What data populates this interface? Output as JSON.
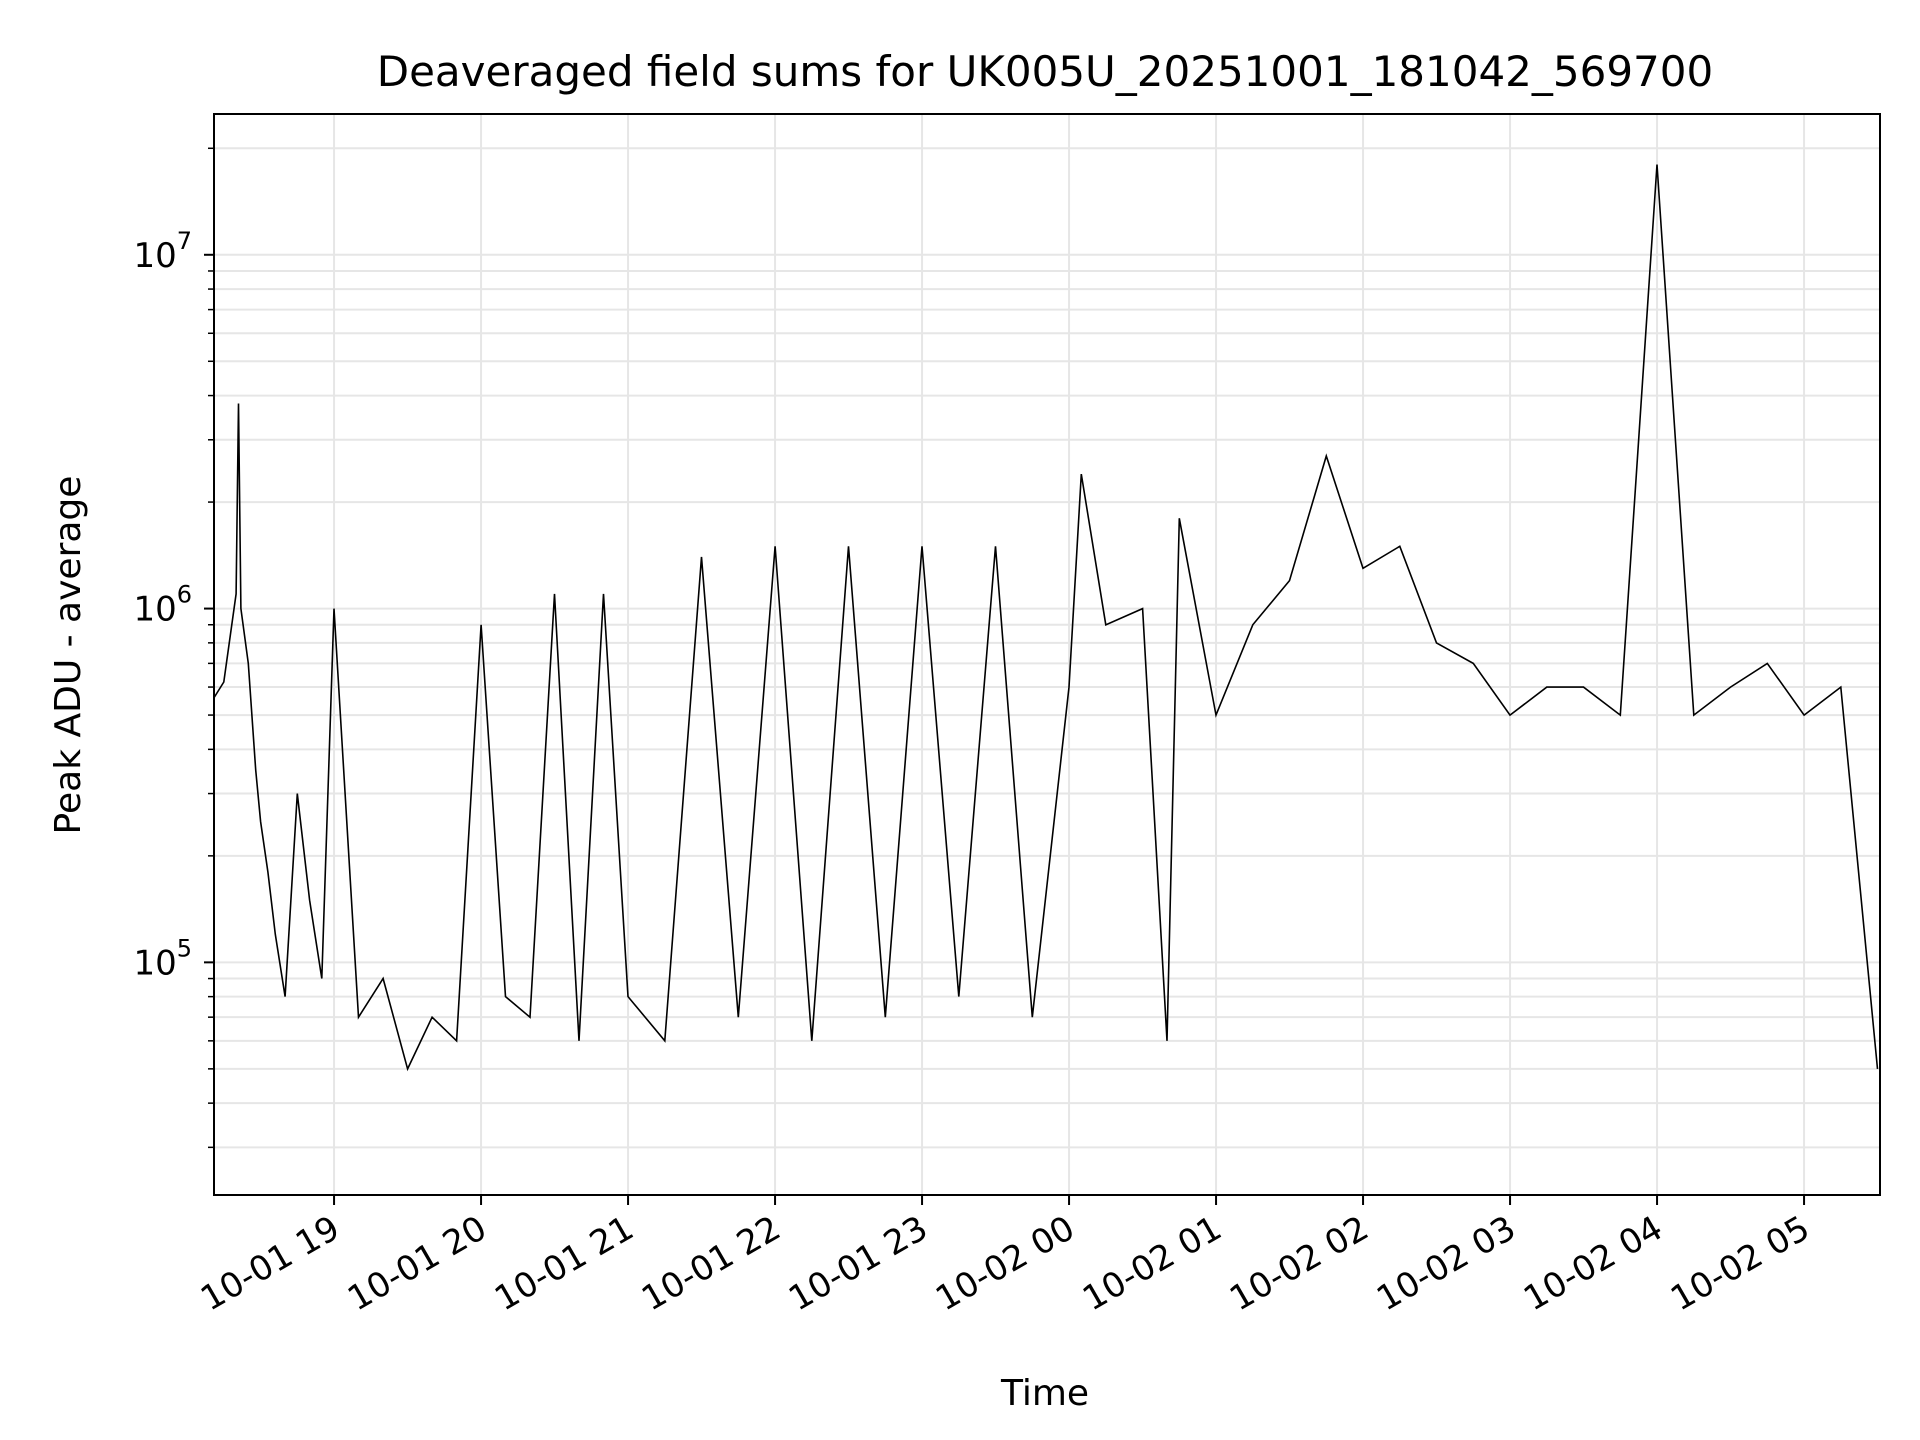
{
  "chart_data": {
    "type": "line",
    "title": "Deaveraged field sums for UK005U_20251001_181042_569700",
    "xlabel": "Time",
    "ylabel": "Peak ADU - average",
    "yscale": "log",
    "ylim": [
      22000,
      25000000
    ],
    "xlim": [
      "2025-10-01 18:11",
      "2025-10-02 05:31"
    ],
    "grid": true,
    "series_color": "#000000",
    "x_ticks": [
      {
        "t": "2025-10-01 19:00",
        "label": "10-01 19"
      },
      {
        "t": "2025-10-01 20:00",
        "label": "10-01 20"
      },
      {
        "t": "2025-10-01 21:00",
        "label": "10-01 21"
      },
      {
        "t": "2025-10-01 22:00",
        "label": "10-01 22"
      },
      {
        "t": "2025-10-01 23:00",
        "label": "10-01 23"
      },
      {
        "t": "2025-10-02 00:00",
        "label": "10-02 00"
      },
      {
        "t": "2025-10-02 01:00",
        "label": "10-02 01"
      },
      {
        "t": "2025-10-02 02:00",
        "label": "10-02 02"
      },
      {
        "t": "2025-10-02 03:00",
        "label": "10-02 03"
      },
      {
        "t": "2025-10-02 04:00",
        "label": "10-02 04"
      },
      {
        "t": "2025-10-02 05:00",
        "label": "10-02 05"
      }
    ],
    "y_ticks": [
      {
        "value": 100000,
        "base": "10",
        "exp": "5"
      },
      {
        "value": 1000000,
        "base": "10",
        "exp": "6"
      },
      {
        "value": 10000000,
        "base": "10",
        "exp": "7"
      }
    ],
    "series": [
      {
        "x": [
          "2025-10-01 18:11",
          "2025-10-01 18:15",
          "2025-10-01 18:20",
          "2025-10-01 18:21",
          "2025-10-01 18:22",
          "2025-10-01 18:25",
          "2025-10-01 18:28",
          "2025-10-01 18:30",
          "2025-10-01 18:33",
          "2025-10-01 18:36",
          "2025-10-01 18:40",
          "2025-10-01 18:45",
          "2025-10-01 18:50",
          "2025-10-01 18:55",
          "2025-10-01 19:00",
          "2025-10-01 19:10",
          "2025-10-01 19:20",
          "2025-10-01 19:30",
          "2025-10-01 19:40",
          "2025-10-01 19:50",
          "2025-10-01 20:00",
          "2025-10-01 20:10",
          "2025-10-01 20:20",
          "2025-10-01 20:30",
          "2025-10-01 20:40",
          "2025-10-01 20:50",
          "2025-10-01 21:00",
          "2025-10-01 21:15",
          "2025-10-01 21:30",
          "2025-10-01 21:45",
          "2025-10-01 22:00",
          "2025-10-01 22:15",
          "2025-10-01 22:30",
          "2025-10-01 22:45",
          "2025-10-01 23:00",
          "2025-10-01 23:15",
          "2025-10-01 23:30",
          "2025-10-01 23:45",
          "2025-10-02 00:00",
          "2025-10-02 00:05",
          "2025-10-02 00:15",
          "2025-10-02 00:30",
          "2025-10-02 00:40",
          "2025-10-02 00:45",
          "2025-10-02 01:00",
          "2025-10-02 01:15",
          "2025-10-02 01:30",
          "2025-10-02 01:45",
          "2025-10-02 02:00",
          "2025-10-02 02:15",
          "2025-10-02 02:30",
          "2025-10-02 02:45",
          "2025-10-02 03:00",
          "2025-10-02 03:15",
          "2025-10-02 03:30",
          "2025-10-02 03:45",
          "2025-10-02 04:00",
          "2025-10-02 04:15",
          "2025-10-02 04:30",
          "2025-10-02 04:45",
          "2025-10-02 05:00",
          "2025-10-02 05:15",
          "2025-10-02 05:30"
        ],
        "y": [
          560000,
          620000,
          1100000,
          3800000,
          1000000,
          700000,
          350000,
          250000,
          180000,
          120000,
          80000,
          300000,
          150000,
          90000,
          1000000,
          70000,
          90000,
          50000,
          70000,
          60000,
          900000,
          80000,
          70000,
          1100000,
          60000,
          1100000,
          80000,
          60000,
          1400000,
          70000,
          1500000,
          60000,
          1500000,
          70000,
          1500000,
          80000,
          1500000,
          70000,
          600000,
          2400000,
          900000,
          1000000,
          60000,
          1800000,
          500000,
          900000,
          1200000,
          2700000,
          1300000,
          1500000,
          800000,
          700000,
          500000,
          600000,
          600000,
          500000,
          18000000,
          500000,
          600000,
          700000,
          500000,
          600000,
          50000
        ]
      }
    ]
  }
}
